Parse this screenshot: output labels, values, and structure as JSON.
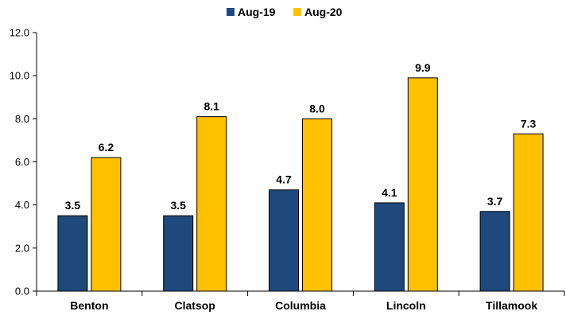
{
  "chart_data": {
    "type": "bar",
    "title": "",
    "xlabel": "",
    "ylabel": "",
    "categories": [
      "Benton",
      "Clatsop",
      "Columbia",
      "Lincoln",
      "Tillamook"
    ],
    "series": [
      {
        "name": "Aug-19",
        "values": [
          3.5,
          3.5,
          4.7,
          4.1,
          3.7
        ],
        "color": "#1F497D"
      },
      {
        "name": "Aug-20",
        "values": [
          6.2,
          8.1,
          8.0,
          9.9,
          7.3
        ],
        "color": "#FFC000"
      }
    ],
    "ylim": [
      0,
      12
    ],
    "yticks": [
      "0.0",
      "2.0",
      "4.0",
      "6.0",
      "8.0",
      "10.0",
      "12.0"
    ],
    "value_labels": [
      [
        "3.5",
        "3.5",
        "4.7",
        "4.1",
        "3.7"
      ],
      [
        "6.2",
        "8.1",
        "8.0",
        "9.9",
        "7.3"
      ]
    ],
    "legend_position": "top-center",
    "grid": false
  }
}
